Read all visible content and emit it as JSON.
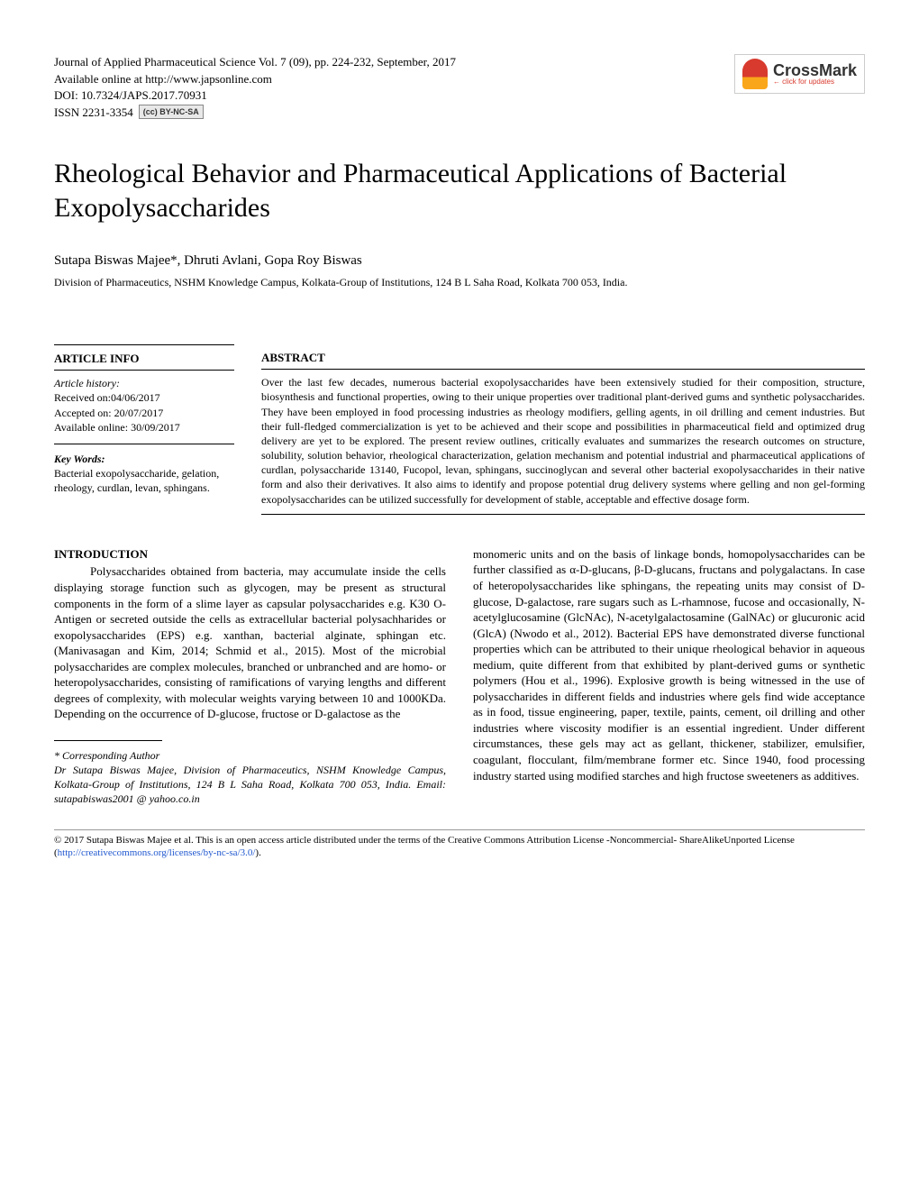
{
  "journal": {
    "citation": "Journal of Applied Pharmaceutical Science Vol. 7 (09), pp. 224-232, September, 2017",
    "availability": "Available online at http://www.japsonline.com",
    "doi": "DOI: 10.7324/JAPS.2017.70931",
    "issn": "ISSN 2231-3354",
    "cc_badge": "(cc) BY-NC-SA"
  },
  "crossmark": {
    "main": "CrossMark",
    "sub": "← click for updates"
  },
  "title": "Rheological Behavior and Pharmaceutical Applications of Bacterial Exopolysaccharides",
  "authors": "Sutapa Biswas Majee*, Dhruti Avlani, Gopa Roy Biswas",
  "affiliation": "Division of Pharmaceutics, NSHM Knowledge Campus, Kolkata-Group of Institutions, 124 B L Saha Road, Kolkata 700 053, India.",
  "article_info": {
    "head": "ARTICLE INFO",
    "history_label": "Article history:",
    "received": "Received on:04/06/2017",
    "accepted": "Accepted on: 20/07/2017",
    "online": "Available online: 30/09/2017",
    "keywords_label": "Key Words:",
    "keywords": "Bacterial exopolysaccharide, gelation, rheology, curdlan, levan, sphingans."
  },
  "abstract": {
    "head": "ABSTRACT",
    "text": "Over the last few decades, numerous bacterial exopolysaccharides have been extensively studied for their composition, structure, biosynthesis and functional properties, owing to their unique properties over traditional plant-derived gums and synthetic polysaccharides. They have been employed in food processing industries as rheology modifiers, gelling agents, in oil drilling and cement industries. But their full-fledged commercialization is yet to be achieved and their scope and possibilities in pharmaceutical field and optimized drug delivery are yet to be explored. The present review outlines, critically evaluates and summarizes the research outcomes on structure, solubility, solution behavior, rheological characterization, gelation mechanism and potential industrial and pharmaceutical applications of curdlan, polysaccharide 13140, Fucopol, levan, sphingans, succinoglycan and several other bacterial exopolysaccharides in their native form and also their derivatives. It also aims to identify and propose potential drug delivery systems where gelling and non gel-forming exopolysaccharides can be utilized successfully for development of stable, acceptable and effective dosage form."
  },
  "body": {
    "intro_head": "INTRODUCTION",
    "col1_para": "Polysaccharides obtained from bacteria, may accumulate inside the cells displaying storage function such as glycogen, may be present as structural components in the form of a slime layer as capsular polysaccharides e.g. K30 O-Antigen or secreted outside the cells as extracellular bacterial polysachharides or exopolysaccharides (EPS) e.g. xanthan, bacterial alginate, sphingan etc. (Manivasagan and Kim, 2014; Schmid et al., 2015). Most of the microbial polysaccharides are complex molecules, branched or unbranched and are homo- or heteropolysaccharides, consisting of ramifications of varying lengths and different degrees of complexity, with molecular weights varying between 10 and 1000KDa. Depending on the occurrence of D-glucose, fructose or D-galactose as the",
    "corresponding_label": "* Corresponding Author",
    "corresponding_text": "Dr Sutapa Biswas Majee, Division of Pharmaceutics, NSHM Knowledge Campus, Kolkata-Group of Institutions, 124 B L Saha Road, Kolkata 700 053, India. Email: sutapabiswas2001 @ yahoo.co.in",
    "col2_para": "monomeric units and on the basis of linkage bonds, homopolysaccharides can be further classified as α-D-glucans, β-D-glucans, fructans and polygalactans. In case of heteropolysaccharides like sphingans, the repeating units may consist of D-glucose, D-galactose, rare sugars such as L-rhamnose, fucose and occasionally, N-acetylglucosamine (GlcNAc), N-acetylgalactosamine (GalNAc) or glucuronic acid (GlcA) (Nwodo et al., 2012). Bacterial EPS have demonstrated diverse functional properties which can be attributed to their unique rheological behavior in aqueous medium, quite different from that exhibited by plant-derived gums or synthetic polymers (Hou et al., 1996). Explosive growth is being witnessed in the use of polysaccharides in different fields and industries where gels find wide acceptance as in food, tissue engineering, paper, textile, paints, cement, oil drilling and other industries where viscosity modifier is an essential ingredient. Under different circumstances, these gels may act as gellant, thickener, stabilizer, emulsifier, coagulant, flocculant, film/membrane former etc. Since 1940, food processing industry started using modified starches and high fructose sweeteners as additives."
  },
  "license": {
    "prefix": "© 2017 Sutapa Biswas Majee et al. This is an open access article distributed under the terms of the Creative Commons Attribution License -Noncommercial- ShareAlikeUnported License (",
    "link_text": "http://creativecommons.org/licenses/by-nc-sa/3.0/",
    "suffix": ")."
  }
}
